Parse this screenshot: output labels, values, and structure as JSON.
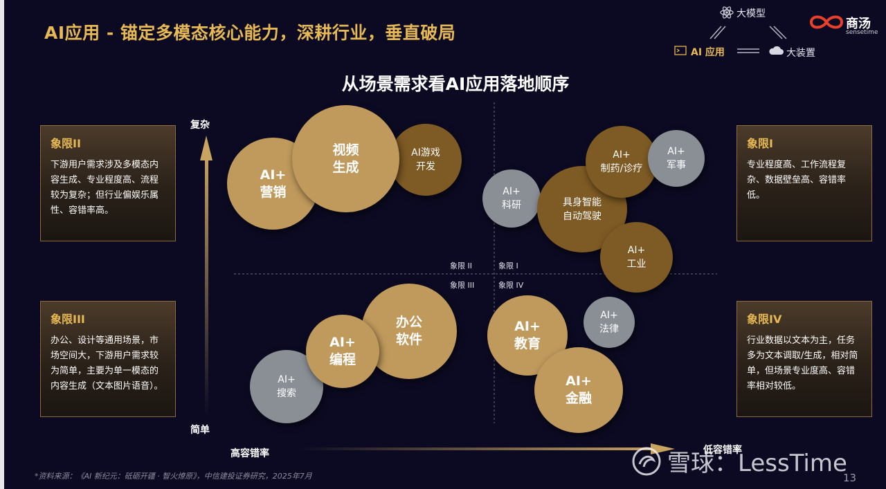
{
  "header": {
    "title": "AI应用 - 锚定多模态核心能力，深耕行业，垂直破局",
    "subtitle": "从场景需求看AI应用落地顺序"
  },
  "brand_diagram": {
    "top": "大模型",
    "left": "AI 应用",
    "right": "大装置",
    "logo_text": "商汤",
    "logo_sub": "sensetime"
  },
  "quadrants": [
    {
      "title": "象限II",
      "desc": "下游用户需求涉及多模态内容生成、专业程度高、流程较为复杂；但行业偏娱乐属性、容错率高。"
    },
    {
      "title": "象限III",
      "desc": "办公、设计等通用场景，市场空间大，下游用户需求较为简单，主要为单一模态的内容生成（文本图片语音）。"
    },
    {
      "title": "象限I",
      "desc": "专业程度高、工作流程复杂、数据壁垒高、容错率低。"
    },
    {
      "title": "象限IV",
      "desc": "行业数据以文本为主，任务多为文本调取/生成，相对简单，但场景专业度高、容错率相对较低。"
    }
  ],
  "quadrant_labels": [
    "象限 II",
    "象限 I",
    "象限 III",
    "象限 IV"
  ],
  "axes": {
    "y_top": "复杂",
    "y_bottom": "简单",
    "x_left": "高容错率",
    "x_right": "低容错率"
  },
  "bubbles": [
    {
      "label": "AI+\n营销",
      "color": "#c09a5c"
    },
    {
      "label": "视频\n生成",
      "color": "#c09a5c"
    },
    {
      "label": "AI游戏\n开发",
      "color": "#7e5a24"
    },
    {
      "label": "AI+\n科研",
      "color": "#8a8f96"
    },
    {
      "label": "AI+\n制药/诊疗",
      "color": "#7e5a24"
    },
    {
      "label": "AI+\n军事",
      "color": "#8a8f96"
    },
    {
      "label": "具身智能\n自动驾驶",
      "color": "#7e5a24"
    },
    {
      "label": "AI+\n工业",
      "color": "#7e5a24"
    },
    {
      "label": "AI+\n搜索",
      "color": "#8a8f96"
    },
    {
      "label": "AI+\n编程",
      "color": "#c09a5c"
    },
    {
      "label": "办公\n软件",
      "color": "#c09a5c"
    },
    {
      "label": "AI+\n教育",
      "color": "#c09a5c"
    },
    {
      "label": "AI+\n法律",
      "color": "#8a8f96"
    },
    {
      "label": "AI+\n金融",
      "color": "#c09a5c"
    }
  ],
  "source": "*资料来源：《AI 新纪元：砥砺开疆 · 智火燎原》，中信建投证券研究，2025年7月",
  "page_number": "13",
  "watermark": "雪球：LessTime"
}
